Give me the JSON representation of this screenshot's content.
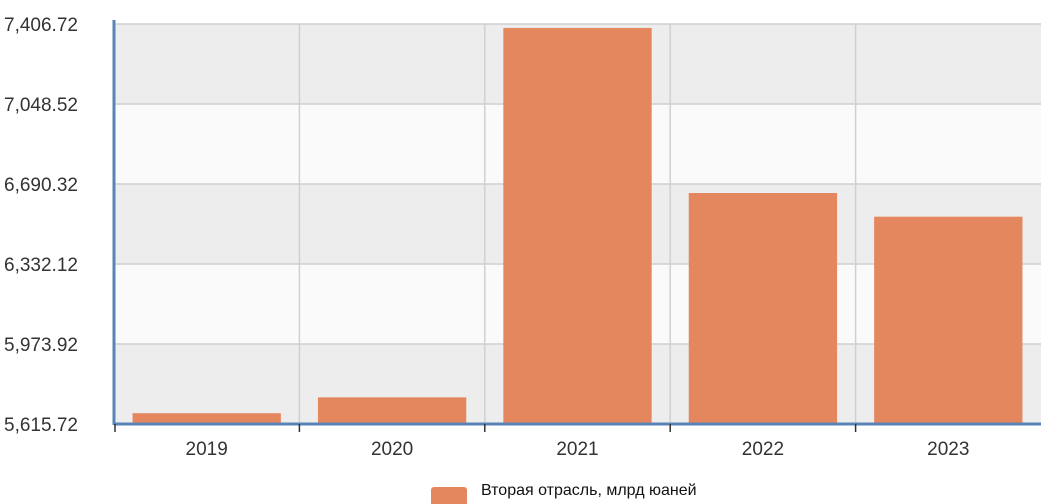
{
  "chart_data": {
    "type": "bar",
    "categories": [
      "2019",
      "2020",
      "2021",
      "2022",
      "2023"
    ],
    "series": [
      {
        "name": "Вторая отрасль, млрд юаней",
        "values": [
          5664,
          5735,
          7389,
          6650,
          6544
        ],
        "color": "#e5875e"
      }
    ],
    "ylim": [
      5615.72,
      7406.72
    ],
    "yticks": [
      "5,615.72",
      "5,973.92",
      "6,332.12",
      "6,690.32",
      "7,048.52",
      "7,406.72"
    ],
    "ytick_values": [
      5615.72,
      5973.92,
      6332.12,
      6690.32,
      7048.52,
      7406.72
    ],
    "grid": true,
    "band_colors": [
      "#ededed",
      "#fafafa"
    ],
    "axis_color": "#5a84b8",
    "grid_color": "#d0d0d0",
    "legend_position": "bottom-center"
  }
}
